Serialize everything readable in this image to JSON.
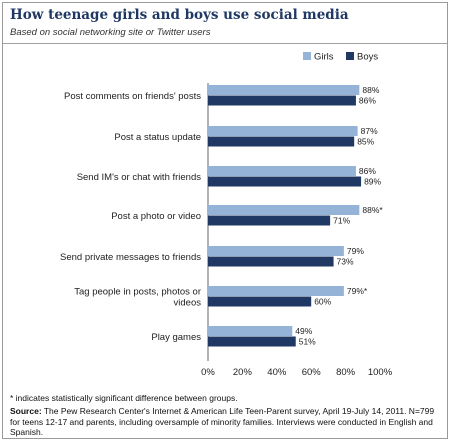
{
  "header": {
    "title": "How teenage girls and boys use social media",
    "subtitle": "Based on social networking site or Twitter users"
  },
  "footer": {
    "footnote": "* indicates statistically significant difference between groups.",
    "source_label": "Source:",
    "source_text": " The Pew Research Center's Internet & American Life Teen-Parent survey, April 19-July 14, 2011. N=799 for teens 12-17 and parents, including oversample of minority families. Interviews were conducted in English and Spanish."
  },
  "chart_data": {
    "type": "bar",
    "orientation": "horizontal",
    "categories": [
      [
        "Post comments on friends' posts"
      ],
      [
        "Post a status update"
      ],
      [
        "Send IM's or chat with friends"
      ],
      [
        "Post a photo or video"
      ],
      [
        "Send private messages to friends"
      ],
      [
        "Tag people in posts, photos or",
        "videos"
      ],
      [
        "Play games"
      ]
    ],
    "series": [
      {
        "name": "Girls",
        "color": "#95b3d7",
        "values": [
          88,
          87,
          86,
          88,
          79,
          79,
          49
        ],
        "labels": [
          "88%",
          "87%",
          "86%",
          "88%*",
          "79%",
          "79%*",
          "49%"
        ]
      },
      {
        "name": "Boys",
        "color": "#1f3864",
        "values": [
          86,
          85,
          89,
          71,
          73,
          60,
          51
        ],
        "labels": [
          "86%",
          "85%",
          "89%",
          "71%",
          "73%",
          "60%",
          "51%"
        ]
      }
    ],
    "xlim": [
      0,
      100
    ],
    "xticks": [
      "0%",
      "20%",
      "40%",
      "60%",
      "80%",
      "100%"
    ],
    "legend": "top-right",
    "grid": false
  }
}
